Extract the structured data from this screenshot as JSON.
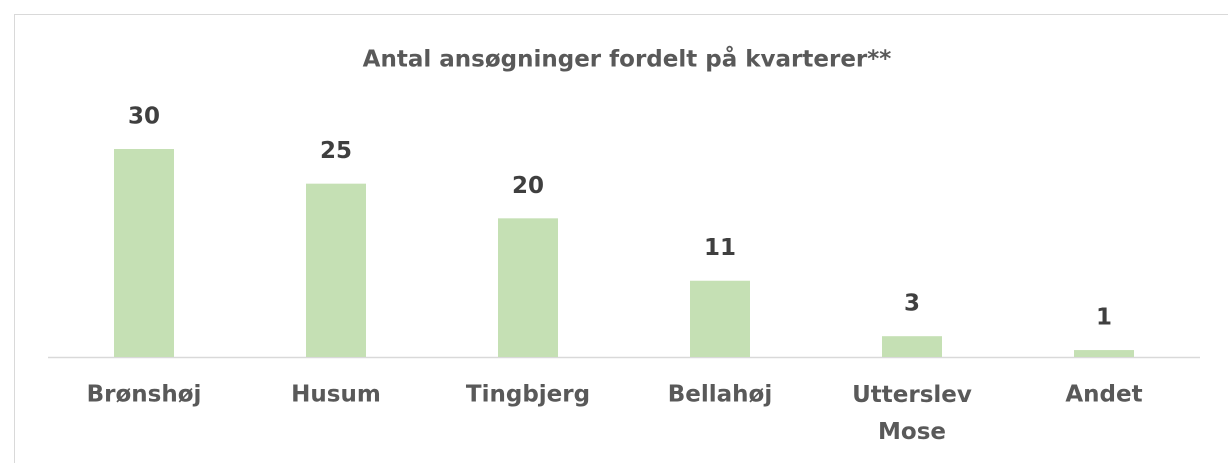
{
  "chart_data": {
    "type": "bar",
    "title": "Antal ansøgninger fordelt på kvarterer**",
    "categories": [
      "Brønshøj",
      "Husum",
      "Tingbjerg",
      "Bellahøj",
      "Utterslev Mose",
      "Andet"
    ],
    "values": [
      30,
      25,
      20,
      11,
      3,
      1
    ],
    "color": "#c5e0b4"
  }
}
